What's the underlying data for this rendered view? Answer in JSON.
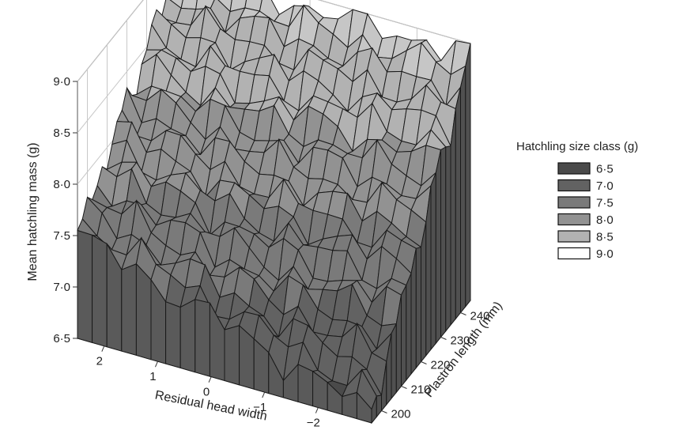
{
  "chart_data": {
    "type": "surface3d",
    "xlabel": "Residual head width",
    "ylabel": "Plastron length (mm)",
    "zlabel": "Mean hatchling mass (g)",
    "x_range": [
      -3,
      2.5
    ],
    "y_range": [
      195,
      245
    ],
    "z_range": [
      6.5,
      9.0
    ],
    "x_ticks": [
      {
        "value": 2,
        "label": "2"
      },
      {
        "value": 1,
        "label": "1"
      },
      {
        "value": 0,
        "label": "0"
      },
      {
        "value": -1,
        "label": "−1"
      },
      {
        "value": -2,
        "label": "−2"
      }
    ],
    "y_ticks": [
      {
        "value": 200,
        "label": "200"
      },
      {
        "value": 210,
        "label": "210"
      },
      {
        "value": 220,
        "label": "220"
      },
      {
        "value": 230,
        "label": "230"
      },
      {
        "value": 240,
        "label": "240"
      }
    ],
    "z_ticks": [
      {
        "value": 6.5,
        "label": "6·5"
      },
      {
        "value": 7.0,
        "label": "7·0"
      },
      {
        "value": 7.5,
        "label": "7·5"
      },
      {
        "value": 8.0,
        "label": "8·0"
      },
      {
        "value": 8.5,
        "label": "8·5"
      },
      {
        "value": 9.0,
        "label": "9·0"
      }
    ],
    "grid": true,
    "legend": {
      "title": "Hatchling size class (g)",
      "placement": "right",
      "entries": [
        {
          "label": "6·5",
          "color": "#4a4a4a"
        },
        {
          "label": "7·0",
          "color": "#626262"
        },
        {
          "label": "7·5",
          "color": "#7a7a7a"
        },
        {
          "label": "8·0",
          "color": "#929292"
        },
        {
          "label": "8·5",
          "color": "#b2b2b2"
        },
        {
          "label": "9·0",
          "color": "#ffffff"
        }
      ]
    },
    "surface_corners": {
      "head_2.5_plastron_195": 7.5,
      "head_2.5_plastron_245": 8.9,
      "head_-3_plastron_195": 6.6,
      "head_-3_plastron_245": 8.9,
      "head_0_plastron_220": 7.9
    }
  }
}
